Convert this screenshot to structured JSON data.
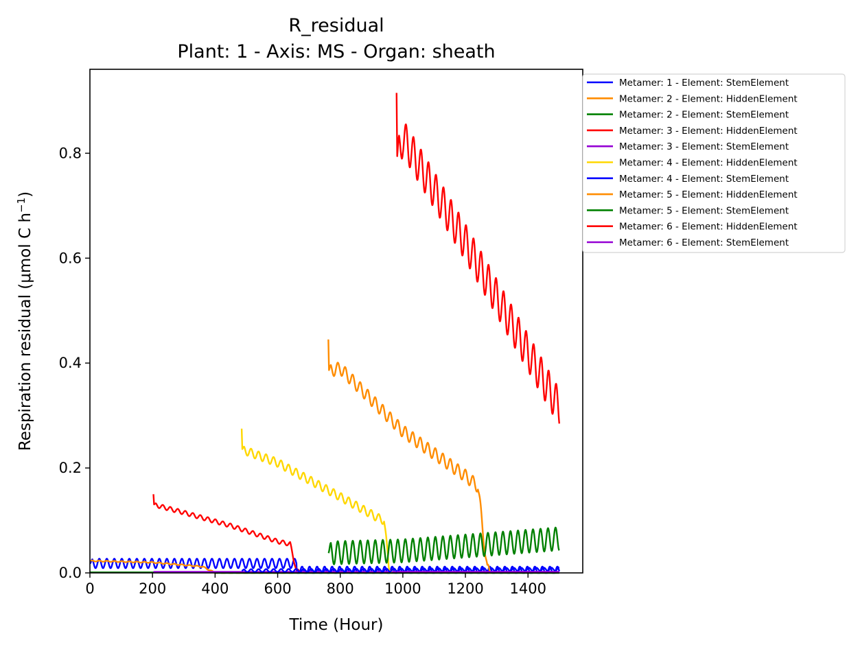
{
  "chart_data": {
    "type": "line",
    "title": "R_residual",
    "subtitle": "Plant: 1 - Axis: MS - Organ: sheath",
    "xlabel": "Time (Hour)",
    "ylabel": "Respiration residual (μmol C h",
    "ylabel_sup": "−1",
    "ylabel_end": ")",
    "xlim": [
      0,
      1575
    ],
    "ylim": [
      0,
      0.96
    ],
    "xticks": [
      0,
      200,
      400,
      600,
      800,
      1000,
      1200,
      1400
    ],
    "yticks": [
      0.0,
      0.2,
      0.4,
      0.6,
      0.8
    ],
    "xtick_labels": [
      "0",
      "200",
      "400",
      "600",
      "800",
      "1000",
      "1200",
      "1400"
    ],
    "ytick_labels": [
      "0.0",
      "0.2",
      "0.4",
      "0.6",
      "0.8"
    ],
    "grid": false,
    "legend_position": "outside-top-right",
    "series": [
      {
        "name": "Metamer: 1 - Element: StemElement",
        "color": "#0000ff",
        "x": [
          0,
          660,
          661,
          1500
        ],
        "y": [
          0.018,
          0.018,
          0.003,
          0.003
        ],
        "osc_amp": 0.009
      },
      {
        "name": "Metamer: 2 - Element: HiddenElement",
        "color": "#ff8c00",
        "x": [
          0,
          200,
          360,
          400,
          660
        ],
        "y": [
          0.023,
          0.02,
          0.012,
          0.0,
          0.0
        ],
        "osc_amp": 0.001
      },
      {
        "name": "Metamer: 2 - Element: StemElement",
        "color": "#008000",
        "x": [
          0,
          400,
          401,
          1500
        ],
        "y": [
          0.001,
          0.001,
          0.0,
          0.0
        ],
        "osc_amp": 0.0
      },
      {
        "name": "Metamer: 3 - Element: HiddenElement",
        "color": "#ff0000",
        "x": [
          203,
          205,
          300,
          450,
          600,
          640,
          660,
          670
        ],
        "y": [
          0.15,
          0.13,
          0.115,
          0.09,
          0.06,
          0.055,
          0.005,
          0.0
        ],
        "osc_amp": 0.004
      },
      {
        "name": "Metamer: 3 - Element: StemElement",
        "color": "#9400d3",
        "x": [
          203,
          1500
        ],
        "y": [
          0.002,
          0.002
        ],
        "osc_amp": 0.0
      },
      {
        "name": "Metamer: 4 - Element: HiddenElement",
        "color": "#ffd700",
        "x": [
          485,
          487,
          600,
          800,
          920,
          940,
          955,
          970
        ],
        "y": [
          0.275,
          0.235,
          0.21,
          0.145,
          0.105,
          0.1,
          0.015,
          0.0
        ],
        "osc_amp": 0.008
      },
      {
        "name": "Metamer: 4 - Element: StemElement",
        "color": "#0000ff",
        "x": [
          485,
          1500
        ],
        "y": [
          0.004,
          0.007
        ],
        "osc_amp": 0.003
      },
      {
        "name": "Metamer: 5 - Element: HiddenElement",
        "color": "#ff8c00",
        "x": [
          762,
          764,
          800,
          1000,
          1200,
          1240,
          1270,
          1280
        ],
        "y": [
          0.445,
          0.385,
          0.39,
          0.27,
          0.185,
          0.165,
          0.005,
          0.0
        ],
        "osc_amp": 0.012
      },
      {
        "name": "Metamer: 5 - Element: StemElement",
        "color": "#008000",
        "x": [
          762,
          1000,
          1500
        ],
        "y": [
          0.038,
          0.042,
          0.065
        ],
        "osc_amp": 0.022
      },
      {
        "name": "Metamer: 6 - Element: HiddenElement",
        "color": "#ff0000",
        "x": [
          980,
          982,
          1000,
          1200,
          1400,
          1500
        ],
        "y": [
          0.915,
          0.79,
          0.83,
          0.63,
          0.42,
          0.315
        ],
        "osc_amp": 0.035
      },
      {
        "name": "Metamer: 6 - Element: StemElement",
        "color": "#9400d3",
        "x": [
          980,
          1500
        ],
        "y": [
          0.002,
          0.002
        ],
        "osc_amp": 0.0
      }
    ]
  }
}
